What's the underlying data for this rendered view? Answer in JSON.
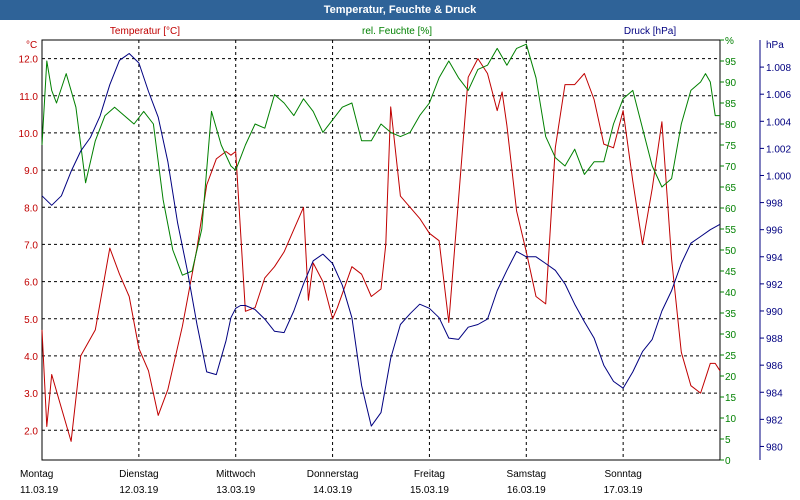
{
  "window": {
    "title": "Temperatur, Feuchte & Druck"
  },
  "chart_data": {
    "type": "line",
    "title": "Temperatur, Feuchte & Druck",
    "grid": true,
    "x_categories": [
      {
        "day": "Montag",
        "date": "11.03.19"
      },
      {
        "day": "Dienstag",
        "date": "12.03.19"
      },
      {
        "day": "Mittwoch",
        "date": "13.03.19"
      },
      {
        "day": "Donnerstag",
        "date": "14.03.19"
      },
      {
        "day": "Freitag",
        "date": "15.03.19"
      },
      {
        "day": "Samstag",
        "date": "16.03.19"
      },
      {
        "day": "Sonntag",
        "date": "17.03.19"
      }
    ],
    "x_range_days": [
      0,
      7
    ],
    "axes": {
      "temperature": {
        "label": "Temperatur [°C]",
        "unit": "°C",
        "range": [
          1.2,
          12.5
        ],
        "ticks": [
          "2.0",
          "3.0",
          "4.0",
          "5.0",
          "6.0",
          "7.0",
          "8.0",
          "9.0",
          "10.0",
          "11.0",
          "12.0"
        ],
        "color": "#c00000"
      },
      "humidity": {
        "label": "rel. Feuchte [%]",
        "unit": "%",
        "range": [
          0,
          100
        ],
        "ticks": [
          "0",
          "5",
          "10",
          "15",
          "20",
          "25",
          "30",
          "35",
          "40",
          "45",
          "50",
          "55",
          "60",
          "65",
          "70",
          "75",
          "80",
          "85",
          "90",
          "95",
          "%"
        ],
        "color": "#008000"
      },
      "pressure": {
        "label": "Druck [hPa]",
        "unit": "hPa",
        "range": [
          979,
          1010
        ],
        "ticks": [
          "980",
          "982",
          "984",
          "986",
          "988",
          "990",
          "992",
          "994",
          "996",
          "998",
          "1.000",
          "1.002",
          "1.004",
          "1.006",
          "1.008"
        ],
        "color": "#000080"
      }
    },
    "series": [
      {
        "name": "Temperatur [°C]",
        "axis": "temperature",
        "color": "#c00000",
        "x": [
          0,
          0.05,
          0.1,
          0.2,
          0.3,
          0.4,
          0.55,
          0.7,
          0.8,
          0.9,
          1.0,
          1.1,
          1.2,
          1.3,
          1.45,
          1.6,
          1.7,
          1.8,
          1.9,
          1.95,
          2.0,
          2.1,
          2.2,
          2.3,
          2.4,
          2.5,
          2.6,
          2.7,
          2.75,
          2.8,
          2.9,
          3.0,
          3.05,
          3.2,
          3.3,
          3.4,
          3.5,
          3.55,
          3.6,
          3.7,
          3.8,
          3.9,
          4.0,
          4.1,
          4.2,
          4.3,
          4.4,
          4.5,
          4.6,
          4.7,
          4.75,
          4.8,
          4.9,
          5.0,
          5.1,
          5.2,
          5.3,
          5.4,
          5.5,
          5.6,
          5.7,
          5.8,
          5.9,
          6.0,
          6.1,
          6.2,
          6.3,
          6.4,
          6.5,
          6.6,
          6.7,
          6.8,
          6.85,
          6.9,
          6.95,
          7.0
        ],
        "values": [
          4.7,
          2.1,
          3.5,
          2.6,
          1.7,
          4.0,
          4.7,
          6.9,
          6.2,
          5.6,
          4.2,
          3.6,
          2.4,
          3.1,
          4.8,
          6.9,
          8.6,
          9.3,
          9.5,
          9.4,
          9.5,
          5.2,
          5.3,
          6.1,
          6.4,
          6.8,
          7.4,
          8.0,
          5.5,
          6.5,
          6.0,
          5.0,
          5.3,
          6.4,
          6.2,
          5.6,
          5.8,
          7.0,
          10.7,
          8.3,
          8.0,
          7.7,
          7.3,
          7.1,
          4.9,
          8.2,
          11.5,
          12.0,
          11.6,
          10.6,
          11.1,
          10.2,
          7.9,
          6.8,
          5.6,
          5.4,
          9.6,
          11.3,
          11.3,
          11.6,
          10.9,
          9.7,
          9.6,
          10.6,
          8.7,
          7.0,
          8.5,
          10.3,
          6.6,
          4.1,
          3.2,
          3.0,
          3.4,
          3.8,
          3.8,
          3.6
        ]
      },
      {
        "name": "rel. Feuchte [%]",
        "axis": "humidity",
        "color": "#008000",
        "x": [
          0,
          0.05,
          0.1,
          0.15,
          0.25,
          0.35,
          0.45,
          0.55,
          0.65,
          0.75,
          0.85,
          0.95,
          1.05,
          1.15,
          1.25,
          1.35,
          1.45,
          1.55,
          1.65,
          1.75,
          1.85,
          1.95,
          2.0,
          2.05,
          2.1,
          2.2,
          2.3,
          2.4,
          2.5,
          2.6,
          2.7,
          2.8,
          2.9,
          3.0,
          3.1,
          3.2,
          3.3,
          3.4,
          3.5,
          3.6,
          3.7,
          3.8,
          3.9,
          4.0,
          4.1,
          4.2,
          4.3,
          4.4,
          4.5,
          4.6,
          4.7,
          4.8,
          4.9,
          5.0,
          5.1,
          5.2,
          5.3,
          5.4,
          5.5,
          5.6,
          5.7,
          5.8,
          5.9,
          6.0,
          6.1,
          6.2,
          6.3,
          6.4,
          6.5,
          6.6,
          6.7,
          6.8,
          6.85,
          6.9,
          6.95,
          7.0
        ],
        "values": [
          75,
          95,
          88,
          85,
          92,
          84,
          66,
          76,
          82,
          84,
          82,
          80,
          83,
          80,
          62,
          50,
          44,
          45,
          55,
          83,
          75,
          70,
          69,
          72,
          75,
          80,
          79,
          87,
          85,
          82,
          86,
          83,
          78,
          81,
          84,
          85,
          76,
          76,
          80,
          78,
          77,
          78,
          82,
          85,
          91,
          95,
          91,
          88,
          93,
          94,
          98,
          94,
          98,
          99,
          91,
          77,
          72,
          70,
          74,
          68,
          71,
          71,
          80,
          86,
          88,
          79,
          70,
          65,
          67,
          80,
          88,
          90,
          92,
          90,
          82,
          82
        ]
      },
      {
        "name": "Druck [hPa]",
        "axis": "pressure",
        "color": "#000080",
        "x": [
          0,
          0.1,
          0.2,
          0.3,
          0.4,
          0.5,
          0.6,
          0.7,
          0.8,
          0.9,
          1.0,
          1.1,
          1.2,
          1.3,
          1.4,
          1.5,
          1.6,
          1.7,
          1.8,
          1.9,
          1.95,
          2.0,
          2.05,
          2.1,
          2.2,
          2.3,
          2.4,
          2.5,
          2.6,
          2.7,
          2.8,
          2.9,
          3.0,
          3.1,
          3.2,
          3.3,
          3.4,
          3.5,
          3.6,
          3.7,
          3.8,
          3.9,
          4.0,
          4.1,
          4.2,
          4.3,
          4.4,
          4.5,
          4.6,
          4.7,
          4.8,
          4.9,
          5.0,
          5.1,
          5.2,
          5.3,
          5.4,
          5.5,
          5.6,
          5.7,
          5.8,
          5.9,
          6.0,
          6.1,
          6.2,
          6.3,
          6.4,
          6.5,
          6.6,
          6.7,
          6.8,
          6.9,
          7.0
        ],
        "values": [
          998.5,
          997.8,
          998.5,
          1000.3,
          1001.8,
          1002.8,
          1004.4,
          1006.7,
          1008.5,
          1009.0,
          1008.3,
          1006.2,
          1004.3,
          1001.0,
          996.5,
          993.0,
          989.0,
          985.5,
          985.3,
          987.8,
          989.5,
          990.2,
          990.4,
          990.4,
          990.1,
          989.4,
          988.5,
          988.4,
          990.0,
          992.0,
          993.7,
          994.2,
          993.5,
          991.9,
          989.5,
          984.5,
          981.5,
          982.5,
          986.5,
          989.0,
          989.8,
          990.5,
          990.2,
          989.5,
          988.0,
          987.9,
          988.8,
          989.0,
          989.4,
          991.5,
          993.0,
          994.4,
          994.0,
          994.0,
          993.5,
          993.0,
          992.0,
          990.5,
          989.2,
          988.0,
          986.0,
          984.8,
          984.3,
          985.5,
          987.0,
          987.9,
          990.0,
          991.5,
          993.5,
          995.0,
          995.5,
          996.0,
          996.4
        ]
      }
    ]
  }
}
